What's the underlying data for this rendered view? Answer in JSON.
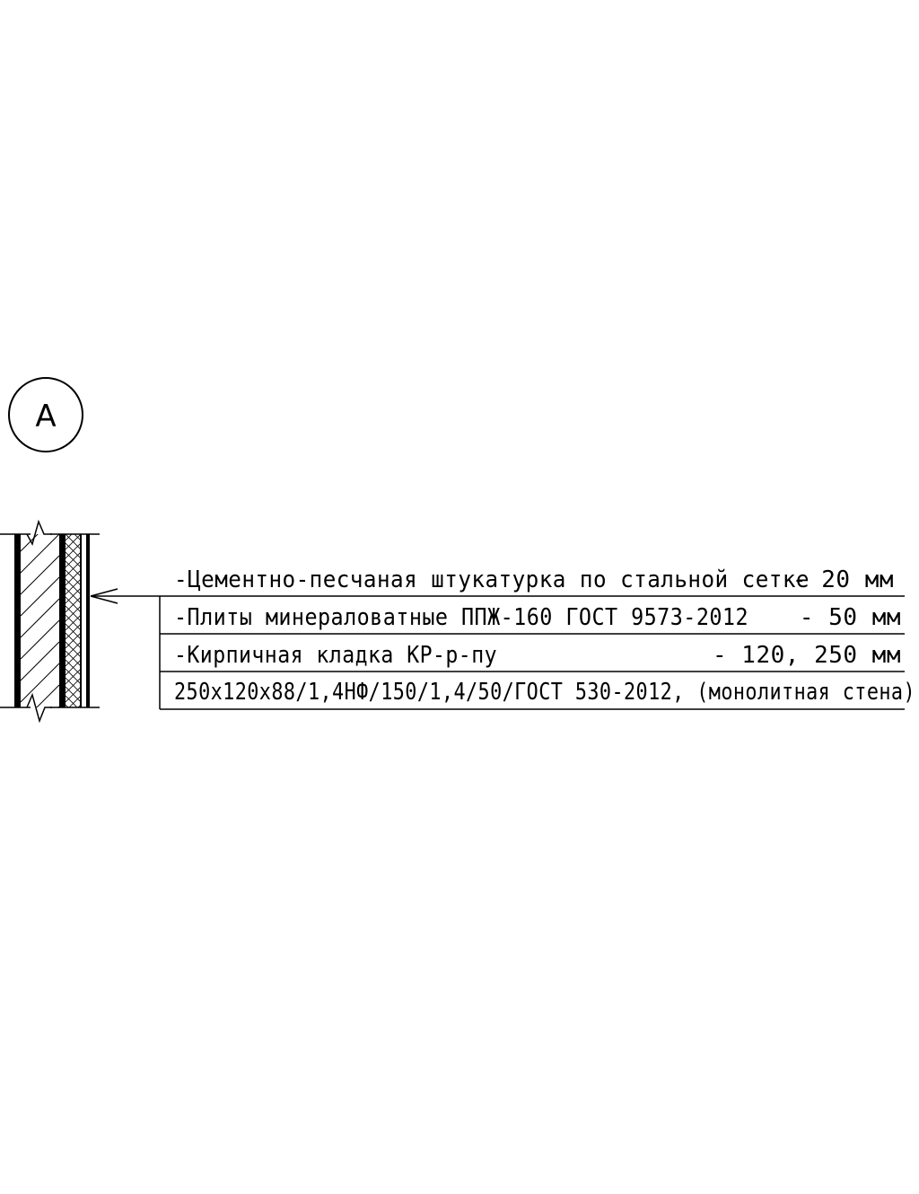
{
  "section_marker": {
    "letter": "А"
  },
  "layers": [
    {
      "description": "-Цементно-песчаная штукатурка по стальной сетке",
      "thickness": "- 20 мм"
    },
    {
      "description": "-Плиты минераловатные ППЖ-160 ГОСТ 9573-2012",
      "thickness": "- 50 мм"
    },
    {
      "description": "-Кирпичная кладка КР-р-пу",
      "thickness": "- 120, 250 мм"
    },
    {
      "description": "250х120х88/1,4НФ/150/1,4/50/ГОСТ 530-2012, (монолитная стена)",
      "thickness": ""
    }
  ],
  "colors": {
    "line": "#000000",
    "background": "#ffffff"
  }
}
